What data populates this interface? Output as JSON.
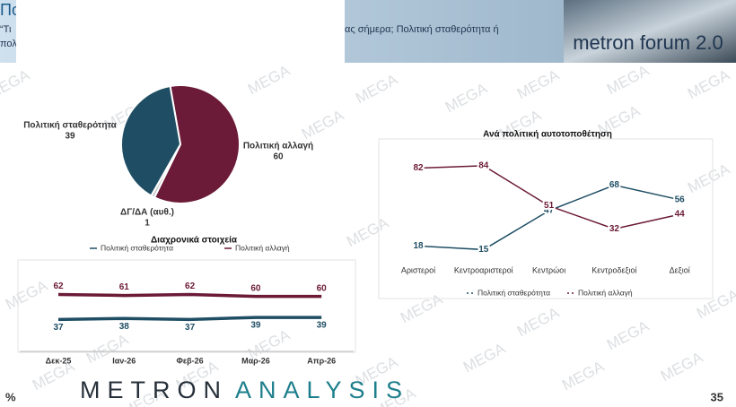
{
  "header": {
    "title": "Πο",
    "question_start": "“Τι",
    "question_line2": "πολ",
    "question_mid": "ας σήμερα; Πολιτική σταθερότητα ή",
    "logo": "metron forum 2.0"
  },
  "watermark": "MEGA",
  "chart_data": [
    {
      "type": "pie",
      "categories": [
        "Πολιτική σταθερότητα",
        "Πολιτική αλλαγή",
        "ΔΓ/ΔΑ (αυθ.)"
      ],
      "values": [
        39,
        60,
        1
      ],
      "colors": [
        "#1f4e64",
        "#6b1a37",
        "#c8c8c8"
      ]
    },
    {
      "type": "line",
      "title": "Διαχρονικά στοιχεία",
      "categories": [
        "Δεκ-25",
        "Ιαν-26",
        "Φεβ-26",
        "Μαρ-26",
        "Απρ-26"
      ],
      "series": [
        {
          "name": "Πολιτική σταθερότητα",
          "color": "#1f4e64",
          "values": [
            37,
            38,
            37,
            39,
            39
          ]
        },
        {
          "name": "Πολιτική αλλαγή",
          "color": "#6b1a37",
          "values": [
            62,
            61,
            62,
            60,
            60
          ]
        }
      ],
      "ylim": [
        5,
        92
      ],
      "legend": "top"
    },
    {
      "type": "line",
      "title": "Ανά πολιτική αυτοτοποθέτηση",
      "categories": [
        "Αριστεροί",
        "Κεντροαριστεροί",
        "Κεντρώοι",
        "Κεντροδεξιοί",
        "Δεξιοί"
      ],
      "series": [
        {
          "name": "Πολιτική σταθερότητα",
          "color": "#1f4e64",
          "values": [
            18,
            15,
            47,
            68,
            56
          ]
        },
        {
          "name": "Πολιτική αλλαγή",
          "color": "#6b1a37",
          "values": [
            82,
            84,
            51,
            32,
            44
          ]
        }
      ],
      "ylim": [
        5,
        106
      ],
      "legend": "bottom"
    }
  ],
  "footer": {
    "brand_left": "METRON",
    "brand_right": "ANALYSIS",
    "unit": "%",
    "page": "35"
  }
}
